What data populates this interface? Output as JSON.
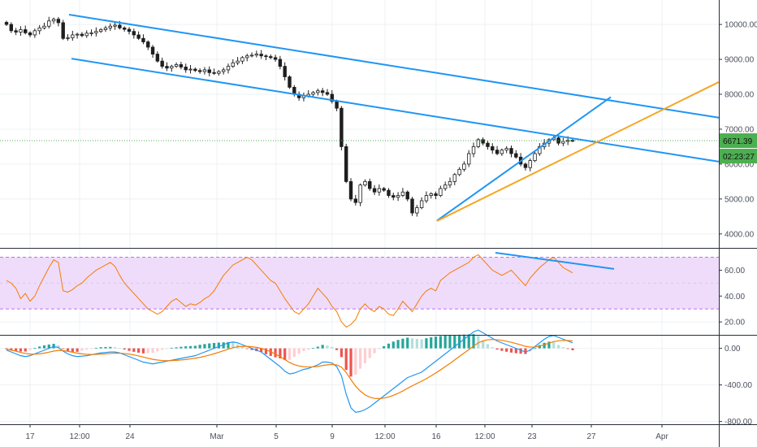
{
  "colors": {
    "up": "#26a69a",
    "down": "#ef5350",
    "candle_body": "#1e1e1e",
    "channel": "#2196f3",
    "orange_trend": "#f5a623",
    "rsi_line": "#f57c00",
    "rsi_band": "#efdcfb",
    "rsi_band_edge": "#c56cf0",
    "macd_line": "#2196f3",
    "signal_line": "#f57c00",
    "price_badge": "#4caf50",
    "grid": "#eef0f3"
  },
  "price_axis": {
    "ticks": [
      "10000.00",
      "9000.00",
      "8000.00",
      "7000.00",
      "6000.00",
      "5000.00",
      "4000.00"
    ]
  },
  "rsi_axis": {
    "ticks": [
      "60.00",
      "40.00",
      "20.00"
    ]
  },
  "macd_axis": {
    "ticks": [
      "0.00",
      "-400.00",
      "-800.00"
    ]
  },
  "time_axis": {
    "ticks": [
      "17",
      "12:00",
      "24",
      "Mar",
      "5",
      "9",
      "12:00",
      "16",
      "12:00",
      "23",
      "27",
      "Apr"
    ]
  },
  "badges": {
    "price": "6671.39",
    "timer": "02:23:27"
  },
  "chart_data": [
    {
      "type": "candlestick",
      "price_ylim": [
        3600,
        10700
      ],
      "close_approx": [
        10000,
        9820,
        9780,
        9850,
        9760,
        9700,
        9820,
        9900,
        9950,
        10100,
        10150,
        10050,
        9600,
        9620,
        9700,
        9720,
        9680,
        9750,
        9760,
        9800,
        9850,
        9900,
        9950,
        9980,
        9900,
        9860,
        9800,
        9700,
        9600,
        9500,
        9350,
        9150,
        8950,
        8800,
        8750,
        8800,
        8850,
        8780,
        8700,
        8720,
        8680,
        8650,
        8700,
        8620,
        8600,
        8650,
        8700,
        8800,
        8900,
        8950,
        9050,
        9100,
        9120,
        9150,
        9100,
        9080,
        9050,
        9000,
        8800,
        8500,
        8200,
        8000,
        7900,
        7950,
        8000,
        8050,
        8100,
        8050,
        8000,
        7800,
        7600,
        6500,
        5500,
        5000,
        4900,
        5400,
        5500,
        5300,
        5200,
        5300,
        5250,
        5100,
        5050,
        5100,
        5200,
        5000,
        4600,
        4750,
        4950,
        5100,
        5150,
        5100,
        5300,
        5400,
        5500,
        5700,
        5850,
        6000,
        6300,
        6500,
        6700,
        6600,
        6500,
        6400,
        6300,
        6400,
        6450,
        6300,
        6200,
        6000,
        5900,
        6100,
        6300,
        6500,
        6600,
        6700,
        6750,
        6600,
        6650,
        6680,
        6671.39
      ],
      "channel_upper": {
        "start": 10280,
        "end": 7330
      },
      "channel_lower": {
        "start": 9020,
        "end": 6070
      },
      "rising_blue": {
        "start": 4380,
        "end": 7920
      },
      "orange_support": {
        "start": 4370,
        "end": 8350
      }
    },
    {
      "type": "line",
      "indicator": "RSI",
      "ylim": [
        10,
        76
      ],
      "band": [
        30,
        70
      ],
      "mid": 50,
      "values": [
        52,
        50,
        46,
        38,
        42,
        36,
        40,
        48,
        55,
        62,
        68,
        66,
        44,
        43,
        45,
        48,
        50,
        54,
        57,
        60,
        62,
        64,
        66,
        63,
        56,
        50,
        46,
        42,
        38,
        34,
        30,
        28,
        26,
        28,
        32,
        36,
        38,
        35,
        32,
        34,
        33,
        35,
        38,
        40,
        44,
        50,
        56,
        60,
        64,
        66,
        68,
        70,
        68,
        64,
        60,
        56,
        52,
        50,
        44,
        38,
        33,
        28,
        26,
        30,
        34,
        40,
        46,
        42,
        38,
        32,
        28,
        20,
        16,
        18,
        22,
        30,
        34,
        30,
        28,
        32,
        30,
        26,
        25,
        30,
        36,
        32,
        28,
        34,
        40,
        44,
        46,
        44,
        52,
        55,
        58,
        60,
        62,
        64,
        66,
        70,
        72,
        68,
        64,
        60,
        58,
        56,
        58,
        60,
        56,
        52,
        48,
        54,
        58,
        62,
        65,
        68,
        70,
        66,
        62,
        60,
        58
      ],
      "divergence": {
        "start": 73.5,
        "end": 61
      }
    },
    {
      "type": "bar+line",
      "indicator": "MACD",
      "ylim": [
        -830,
        130
      ],
      "macd": [
        -20,
        -40,
        -60,
        -80,
        -90,
        -80,
        -60,
        -40,
        -20,
        0,
        20,
        10,
        -30,
        -60,
        -80,
        -90,
        -85,
        -80,
        -70,
        -60,
        -50,
        -45,
        -40,
        -40,
        -50,
        -70,
        -90,
        -110,
        -130,
        -150,
        -160,
        -170,
        -160,
        -150,
        -140,
        -130,
        -120,
        -110,
        -100,
        -90,
        -80,
        -60,
        -40,
        -20,
        0,
        20,
        40,
        60,
        70,
        60,
        40,
        20,
        0,
        -20,
        -40,
        -80,
        -120,
        -160,
        -200,
        -250,
        -280,
        -270,
        -250,
        -230,
        -220,
        -200,
        -180,
        -150,
        -150,
        -160,
        -200,
        -300,
        -500,
        -650,
        -700,
        -690,
        -670,
        -640,
        -600,
        -560,
        -520,
        -480,
        -440,
        -400,
        -360,
        -320,
        -300,
        -280,
        -260,
        -220,
        -180,
        -140,
        -100,
        -60,
        -20,
        20,
        60,
        100,
        140,
        180,
        200,
        170,
        140,
        110,
        80,
        60,
        40,
        20,
        0,
        -20,
        -40,
        -20,
        20,
        60,
        100,
        130,
        140,
        120,
        100,
        80,
        60
      ],
      "signal": [
        -10,
        -20,
        -30,
        -45,
        -55,
        -62,
        -64,
        -60,
        -52,
        -42,
        -30,
        -22,
        -25,
        -32,
        -42,
        -52,
        -60,
        -65,
        -67,
        -66,
        -63,
        -60,
        -56,
        -53,
        -53,
        -57,
        -63,
        -72,
        -83,
        -95,
        -108,
        -120,
        -128,
        -133,
        -135,
        -134,
        -131,
        -127,
        -122,
        -115,
        -108,
        -99,
        -87,
        -74,
        -59,
        -43,
        -26,
        -9,
        7,
        17,
        22,
        22,
        18,
        11,
        0,
        -16,
        -37,
        -62,
        -90,
        -122,
        -154,
        -178,
        -193,
        -200,
        -204,
        -203,
        -198,
        -188,
        -180,
        -176,
        -181,
        -205,
        -264,
        -341,
        -413,
        -468,
        -508,
        -534,
        -547,
        -550,
        -544,
        -532,
        -514,
        -492,
        -466,
        -437,
        -410,
        -384,
        -359,
        -331,
        -301,
        -269,
        -235,
        -200,
        -164,
        -127,
        -89,
        -51,
        -13,
        25,
        60,
        82,
        94,
        97,
        94,
        87,
        77,
        66,
        53,
        38,
        22,
        14,
        15,
        24,
        39,
        57,
        74,
        83,
        87,
        86,
        81
      ]
    }
  ]
}
